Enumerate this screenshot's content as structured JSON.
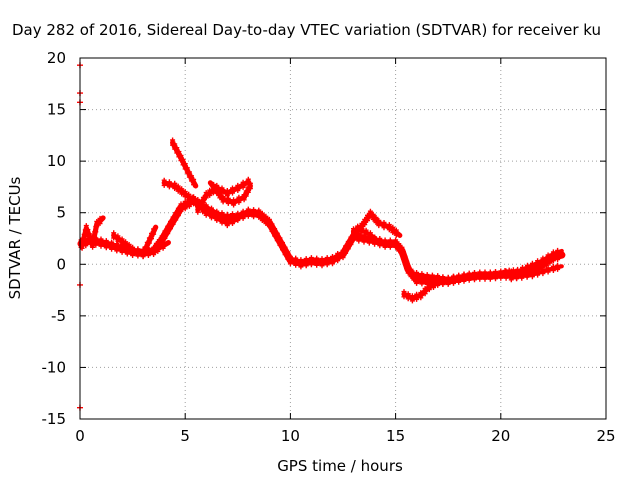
{
  "chart_data": {
    "type": "scatter",
    "title": "Day 282 of 2016, Sidereal Day-to-day VTEC variation (SDTVAR) for receiver ku",
    "xlabel": "GPS time / hours",
    "ylabel": "SDTVAR / TECUs",
    "xlim": [
      0,
      25
    ],
    "ylim": [
      -15,
      20
    ],
    "xticks": [
      0,
      5,
      10,
      15,
      20,
      25
    ],
    "yticks": [
      -15,
      -10,
      -5,
      0,
      5,
      10,
      15,
      20
    ],
    "grid": true,
    "series_color": "#ff0000",
    "bands": [
      {
        "name": "main-trace",
        "width": 0.7,
        "points": [
          [
            0.05,
            2.0
          ],
          [
            0.5,
            2.3
          ],
          [
            1.0,
            2.1
          ],
          [
            1.5,
            1.8
          ],
          [
            2.0,
            1.5
          ],
          [
            2.5,
            1.2
          ],
          [
            3.0,
            1.1
          ],
          [
            3.5,
            1.3
          ],
          [
            3.9,
            2.4
          ],
          [
            4.3,
            3.8
          ],
          [
            4.8,
            5.5
          ],
          [
            5.4,
            6.2
          ],
          [
            6.0,
            5.4
          ],
          [
            6.5,
            4.8
          ],
          [
            7.0,
            4.5
          ],
          [
            7.5,
            4.6
          ],
          [
            8.0,
            5.0
          ],
          [
            8.5,
            4.9
          ],
          [
            9.0,
            4.0
          ],
          [
            9.5,
            2.2
          ],
          [
            10.0,
            0.4
          ],
          [
            10.5,
            0.1
          ],
          [
            11.0,
            0.3
          ],
          [
            11.5,
            0.2
          ],
          [
            12.0,
            0.4
          ],
          [
            12.5,
            1.0
          ],
          [
            13.0,
            2.7
          ],
          [
            13.5,
            2.5
          ],
          [
            14.0,
            2.3
          ],
          [
            14.5,
            2.0
          ],
          [
            15.0,
            2.0
          ],
          [
            15.3,
            1.3
          ],
          [
            15.6,
            -0.5
          ],
          [
            16.0,
            -1.5
          ],
          [
            16.5,
            -1.6
          ],
          [
            17.0,
            -1.6
          ],
          [
            17.5,
            -1.6
          ],
          [
            18.0,
            -1.4
          ],
          [
            18.5,
            -1.2
          ],
          [
            19.0,
            -1.1
          ],
          [
            19.5,
            -1.1
          ],
          [
            20.0,
            -1.0
          ],
          [
            20.5,
            -1.0
          ],
          [
            21.0,
            -1.0
          ],
          [
            21.5,
            -0.6
          ],
          [
            22.0,
            0.0
          ],
          [
            22.5,
            0.7
          ],
          [
            22.9,
            0.9
          ]
        ]
      },
      {
        "name": "early-spikes",
        "width": 0.5,
        "points": [
          [
            0.1,
            1.8
          ],
          [
            0.3,
            3.5
          ],
          [
            0.6,
            1.9
          ],
          [
            0.8,
            3.9
          ],
          [
            1.1,
            4.5
          ]
        ]
      },
      {
        "name": "dip-2-to-3h",
        "width": 0.5,
        "points": [
          [
            1.6,
            2.8
          ],
          [
            2.0,
            2.2
          ],
          [
            2.5,
            1.4
          ],
          [
            3.0,
            1.0
          ],
          [
            3.3,
            2.3
          ],
          [
            3.6,
            3.6
          ]
        ]
      },
      {
        "name": "branch-3-6h",
        "width": 0.5,
        "points": [
          [
            3.7,
            1.5
          ],
          [
            4.2,
            2.1
          ]
        ]
      },
      {
        "name": "branch-4-8h",
        "width": 0.5,
        "points": [
          [
            4.0,
            7.9
          ],
          [
            4.5,
            7.6
          ],
          [
            5.0,
            6.8
          ],
          [
            5.5,
            6.0
          ],
          [
            6.0,
            5.0
          ],
          [
            6.5,
            4.5
          ],
          [
            7.0,
            4.0
          ],
          [
            7.5,
            4.4
          ]
        ]
      },
      {
        "name": "spike-4-6h",
        "width": 0.5,
        "points": [
          [
            4.4,
            11.8
          ],
          [
            4.8,
            10.3
          ],
          [
            5.2,
            8.7
          ],
          [
            5.5,
            7.6
          ]
        ]
      },
      {
        "name": "loop-5-8h",
        "width": 0.5,
        "points": [
          [
            5.6,
            5.3
          ],
          [
            6.0,
            6.7
          ],
          [
            6.5,
            7.4
          ],
          [
            7.0,
            6.9
          ],
          [
            7.5,
            7.4
          ],
          [
            8.0,
            8.0
          ],
          [
            8.1,
            7.6
          ],
          [
            7.8,
            6.5
          ],
          [
            7.3,
            6.0
          ],
          [
            6.8,
            6.3
          ],
          [
            6.2,
            7.9
          ]
        ]
      },
      {
        "name": "hump-13-15h",
        "width": 0.5,
        "points": [
          [
            13.0,
            3.2
          ],
          [
            13.4,
            3.7
          ],
          [
            13.8,
            4.9
          ],
          [
            14.2,
            4.0
          ],
          [
            14.7,
            3.6
          ],
          [
            15.2,
            2.8
          ]
        ]
      },
      {
        "name": "hump-13-14h",
        "width": 0.4,
        "points": [
          [
            12.8,
            2.0
          ],
          [
            13.2,
            3.4
          ],
          [
            13.6,
            3.1
          ],
          [
            14.0,
            2.6
          ]
        ]
      },
      {
        "name": "low-branch-15-18h",
        "width": 0.5,
        "points": [
          [
            15.4,
            -2.9
          ],
          [
            15.8,
            -3.3
          ],
          [
            16.2,
            -3.0
          ],
          [
            16.6,
            -2.2
          ],
          [
            17.0,
            -1.8
          ],
          [
            17.5,
            -1.6
          ],
          [
            18.0,
            -1.3
          ]
        ]
      },
      {
        "name": "mid-branch-16-19h",
        "width": 0.4,
        "points": [
          [
            16.0,
            -1.0
          ],
          [
            16.5,
            -1.2
          ],
          [
            17.0,
            -1.3
          ],
          [
            17.5,
            -1.5
          ],
          [
            18.0,
            -1.3
          ],
          [
            18.5,
            -1.0
          ]
        ]
      },
      {
        "name": "upper-branch-20-23h",
        "width": 0.4,
        "points": [
          [
            20.2,
            -0.8
          ],
          [
            20.8,
            -0.7
          ],
          [
            21.5,
            -0.1
          ],
          [
            22.0,
            0.4
          ],
          [
            22.5,
            1.0
          ],
          [
            22.9,
            1.3
          ]
        ]
      },
      {
        "name": "lower-branch-20-23h",
        "width": 0.4,
        "points": [
          [
            20.5,
            -1.3
          ],
          [
            21.0,
            -1.1
          ],
          [
            21.5,
            -1.0
          ],
          [
            22.0,
            -0.7
          ],
          [
            22.5,
            -0.4
          ],
          [
            22.9,
            -0.2
          ]
        ]
      }
    ],
    "isolated_marks": [
      {
        "name": "tick-mark-19",
        "x": 0.0,
        "y": 19.3
      },
      {
        "name": "tick-mark-16-6",
        "x": 0.0,
        "y": 16.6
      },
      {
        "name": "tick-mark-15-8",
        "x": 0.0,
        "y": 15.7
      },
      {
        "name": "tick-mark-neg2",
        "x": 0.0,
        "y": -2.0
      },
      {
        "name": "tick-mark-neg14",
        "x": 0.0,
        "y": -13.9
      }
    ]
  }
}
